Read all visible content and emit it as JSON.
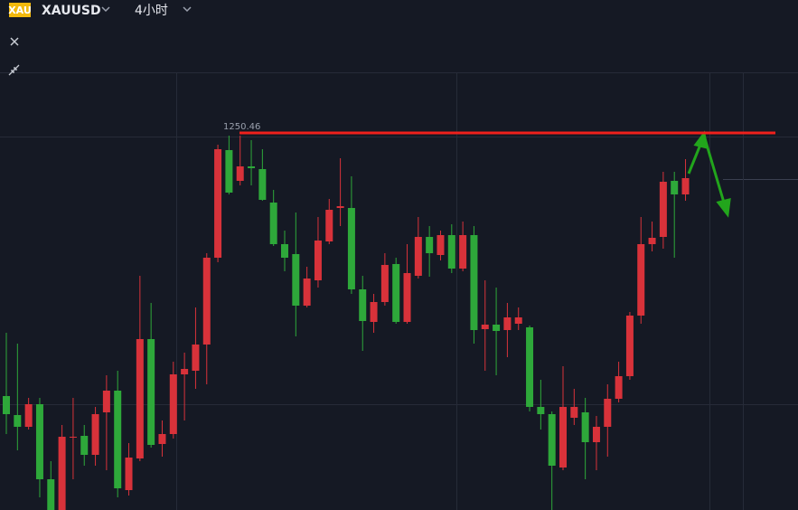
{
  "header": {
    "icon": "XAU",
    "symbol": "XAUUSD",
    "interval": "4小时"
  },
  "chart_data": {
    "type": "candlestick",
    "up_color": "#d8323a",
    "down_color": "#2ea83a",
    "ylim": [
      1208.76,
      1265.16
    ],
    "hline": {
      "value": 1250.46,
      "color": "#f0201c"
    },
    "open": [
      1221.36,
      1219.26,
      1217.96,
      1220.46,
      1212.16,
      1208.76,
      1216.76,
      1216.96,
      1214.86,
      1219.56,
      1221.96,
      1210.96,
      1214.46,
      1227.66,
      1216.06,
      1217.16,
      1223.76,
      1224.16,
      1227.06,
      1236.66,
      1248.56,
      1245.16,
      1246.76,
      1246.46,
      1242.76,
      1238.16,
      1237.06,
      1231.36,
      1234.16,
      1238.46,
      1242.16,
      1242.16,
      1233.16,
      1229.56,
      1231.76,
      1235.96,
      1229.56,
      1234.66,
      1238.96,
      1236.96,
      1239.16,
      1235.46,
      1239.16,
      1228.76,
      1229.26,
      1228.66,
      1229.36,
      1228.96,
      1220.16,
      1219.36,
      1213.46,
      1218.96,
      1219.56,
      1216.26,
      1217.96,
      1221.06,
      1223.56,
      1230.26,
      1238.16,
      1238.96,
      1245.16,
      1243.66
    ],
    "high": [
      1228.36,
      1227.16,
      1221.16,
      1221.16,
      1214.16,
      1218.16,
      1221.16,
      1218.16,
      1220.16,
      1223.66,
      1224.16,
      1216.16,
      1234.66,
      1231.66,
      1218.66,
      1225.16,
      1226.16,
      1231.16,
      1237.16,
      1249.16,
      1250.16,
      1250.16,
      1249.66,
      1248.66,
      1244.16,
      1239.66,
      1241.66,
      1235.66,
      1241.16,
      1243.16,
      1247.66,
      1245.66,
      1234.66,
      1232.66,
      1237.16,
      1236.66,
      1238.16,
      1241.16,
      1240.16,
      1239.66,
      1240.36,
      1240.66,
      1240.16,
      1234.16,
      1233.36,
      1231.66,
      1231.16,
      1229.16,
      1223.16,
      1219.66,
      1224.66,
      1222.16,
      1221.16,
      1219.16,
      1222.66,
      1225.16,
      1230.66,
      1241.16,
      1240.66,
      1246.16,
      1246.16,
      1247.56
    ],
    "low": [
      1217.16,
      1215.36,
      1217.66,
      1210.16,
      1208.76,
      1208.76,
      1212.16,
      1213.66,
      1213.66,
      1213.16,
      1210.16,
      1210.36,
      1214.16,
      1215.66,
      1214.66,
      1216.66,
      1218.66,
      1222.16,
      1222.66,
      1236.16,
      1243.66,
      1244.66,
      1244.66,
      1242.96,
      1237.96,
      1235.16,
      1227.96,
      1231.16,
      1233.36,
      1238.16,
      1240.16,
      1232.66,
      1226.36,
      1228.36,
      1231.36,
      1229.36,
      1229.36,
      1234.36,
      1234.56,
      1236.36,
      1234.96,
      1235.16,
      1227.16,
      1224.16,
      1223.66,
      1225.66,
      1228.66,
      1219.66,
      1217.66,
      1208.76,
      1213.16,
      1218.16,
      1212.16,
      1213.16,
      1214.66,
      1220.66,
      1223.16,
      1229.36,
      1237.36,
      1237.66,
      1236.66,
      1242.96
    ],
    "close": [
      1219.36,
      1217.96,
      1220.46,
      1212.16,
      1208.76,
      1216.86,
      1216.86,
      1214.86,
      1219.36,
      1221.96,
      1211.16,
      1214.56,
      1227.66,
      1215.96,
      1217.16,
      1223.76,
      1224.36,
      1227.06,
      1236.66,
      1248.66,
      1243.86,
      1246.76,
      1246.56,
      1243.06,
      1238.16,
      1236.66,
      1231.36,
      1234.36,
      1238.56,
      1241.96,
      1242.36,
      1233.16,
      1229.66,
      1231.76,
      1235.86,
      1229.56,
      1234.96,
      1238.96,
      1237.16,
      1239.16,
      1235.46,
      1239.16,
      1228.66,
      1229.26,
      1228.56,
      1230.06,
      1230.06,
      1220.16,
      1219.36,
      1213.66,
      1220.16,
      1220.16,
      1216.26,
      1217.96,
      1221.06,
      1223.56,
      1230.26,
      1238.16,
      1238.86,
      1245.06,
      1243.66,
      1245.46
    ]
  }
}
